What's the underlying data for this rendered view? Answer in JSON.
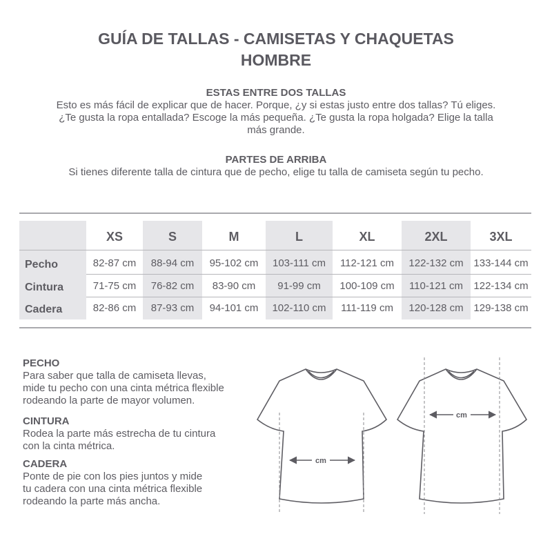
{
  "title": [
    "GUÍA DE TALLAS - CAMISETAS Y CHAQUETAS",
    "HOMBRE"
  ],
  "between": {
    "heading": "ESTAS ENTRE DOS TALLAS",
    "lines": [
      "Esto es más fácil de explicar que de hacer. Porque, ¿y si estas justo entre dos tallas? Tú eliges.",
      "¿Te gusta la ropa entallada? Escoge la más pequeña. ¿Te gusta la ropa holgada? Elige la talla",
      "más grande."
    ]
  },
  "tops": {
    "heading": "PARTES DE ARRIBA",
    "text": "Si tienes diferente talla de cintura que de pecho, elige tu talla de camiseta según tu pecho."
  },
  "table": {
    "sizes": [
      "XS",
      "S",
      "M",
      "L",
      "XL",
      "2XL",
      "3XL"
    ],
    "rows": [
      {
        "label": "Pecho",
        "values": [
          "82-87 cm",
          "88-94 cm",
          "95-102 cm",
          "103-111 cm",
          "112-121 cm",
          "122-132 cm",
          "133-144 cm"
        ]
      },
      {
        "label": "Cintura",
        "values": [
          "71-75 cm",
          "76-82 cm",
          "83-90 cm",
          "91-99 cm",
          "100-109 cm",
          "110-121 cm",
          "122-134 cm"
        ]
      },
      {
        "label": "Cadera",
        "values": [
          "82-86 cm",
          "87-93 cm",
          "94-101 cm",
          "102-110 cm",
          "111-119 cm",
          "120-128 cm",
          "129-138 cm"
        ]
      }
    ]
  },
  "guide": [
    {
      "heading": "PECHO",
      "lines": [
        "Para saber que talla de camiseta llevas,",
        "mide tu pecho con una cinta métrica flexible",
        "rodeando la parte de mayor volumen."
      ]
    },
    {
      "heading": "CINTURA",
      "lines": [
        "Rodea la parte más estrecha de tu cintura",
        "con la cinta métrica."
      ]
    },
    {
      "heading": "CADERA",
      "lines": [
        "Ponte de pie con los pies juntos y mide",
        "tu cadera con una cinta métrica flexible",
        "rodeando la parte más ancha."
      ]
    }
  ],
  "diagram": {
    "unit": "cm"
  },
  "colors": {
    "text": "#5d5c62",
    "shade": "#e6e6e9"
  }
}
